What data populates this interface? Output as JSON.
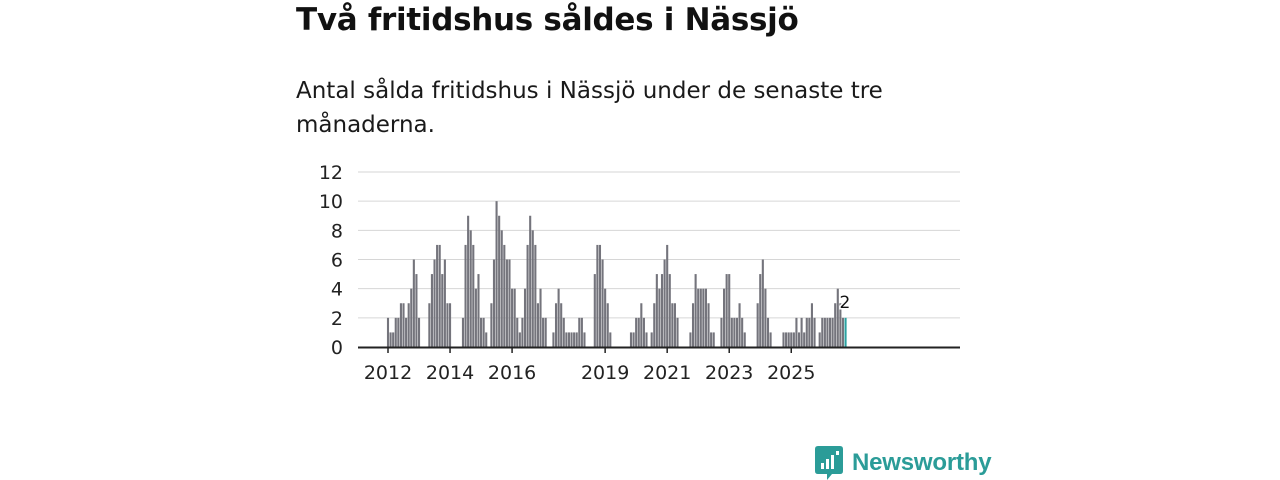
{
  "title": "Två fritidshus såldes i Nässjö",
  "subtitle": "Antal sålda fritidshus i Nässjö under de senaste tre månaderna.",
  "brand": {
    "name": "Newsworthy",
    "icon": "newsworthy-logo-icon"
  },
  "colors": {
    "bar": "#74747c",
    "highlight": "#2aa1a0",
    "grid": "#d6d6d6",
    "axis": "#222222",
    "text": "#222222"
  },
  "chart_data": {
    "type": "bar",
    "title": "Två fritidshus såldes i Nässjö",
    "subtitle": "Antal sålda fritidshus i Nässjö under de senaste tre månaderna.",
    "xlabel": "",
    "ylabel": "",
    "ylim": [
      0,
      12
    ],
    "y_ticks": [
      "0",
      "2",
      "4",
      "6",
      "8",
      "10",
      "12"
    ],
    "x_ticks": [
      {
        "label": "2012",
        "index": 0
      },
      {
        "label": "2014",
        "index": 24
      },
      {
        "label": "2016",
        "index": 48
      },
      {
        "label": "2019",
        "index": 84
      },
      {
        "label": "2021",
        "index": 108
      },
      {
        "label": "2023",
        "index": 132
      },
      {
        "label": "2025",
        "index": 156
      }
    ],
    "start": "2012-01",
    "values": [
      2,
      1,
      1,
      2,
      2,
      3,
      3,
      2,
      3,
      4,
      6,
      5,
      2,
      0,
      0,
      0,
      3,
      5,
      6,
      7,
      7,
      5,
      6,
      3,
      3,
      0,
      0,
      0,
      0,
      2,
      7,
      9,
      8,
      7,
      4,
      5,
      2,
      2,
      1,
      0,
      3,
      6,
      10,
      9,
      8,
      7,
      6,
      6,
      4,
      4,
      2,
      1,
      2,
      4,
      7,
      9,
      8,
      7,
      3,
      4,
      2,
      2,
      0,
      0,
      1,
      3,
      4,
      3,
      2,
      1,
      1,
      1,
      1,
      1,
      2,
      2,
      1,
      0,
      0,
      0,
      5,
      7,
      7,
      6,
      4,
      3,
      1,
      0,
      0,
      0,
      0,
      0,
      0,
      0,
      1,
      1,
      2,
      2,
      3,
      2,
      1,
      0,
      1,
      3,
      5,
      4,
      5,
      6,
      7,
      5,
      3,
      3,
      2,
      0,
      0,
      0,
      0,
      1,
      3,
      5,
      4,
      4,
      4,
      4,
      3,
      1,
      1,
      0,
      0,
      2,
      4,
      5,
      5,
      2,
      2,
      2,
      3,
      2,
      1,
      0,
      0,
      0,
      0,
      3,
      5,
      6,
      4,
      2,
      1,
      0,
      0,
      0,
      0,
      1,
      1,
      1,
      1,
      1,
      2,
      1,
      2,
      1,
      2,
      2,
      3,
      2,
      0,
      1,
      2,
      2,
      2,
      2,
      2,
      3,
      4,
      3,
      2,
      2
    ],
    "last_value_label": "2",
    "highlight_last": true
  }
}
